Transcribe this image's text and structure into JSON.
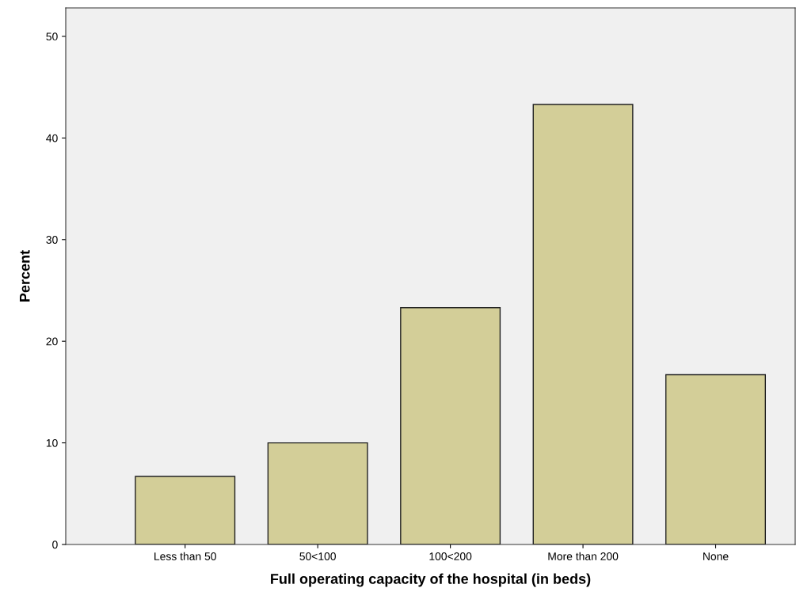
{
  "chart_data": {
    "type": "bar",
    "xlabel": "Full operating capacity of the hospital (in beds)",
    "ylabel": "Percent",
    "categories": [
      "Less than 50",
      "50<100",
      "100<200",
      "More than 200",
      "None"
    ],
    "values": [
      6.7,
      10.0,
      23.3,
      43.3,
      16.7
    ],
    "color": "#d3ce98",
    "ylim": [
      0,
      52.8
    ],
    "yticks": [
      0,
      10,
      20,
      30,
      40,
      50
    ],
    "grid": false
  }
}
